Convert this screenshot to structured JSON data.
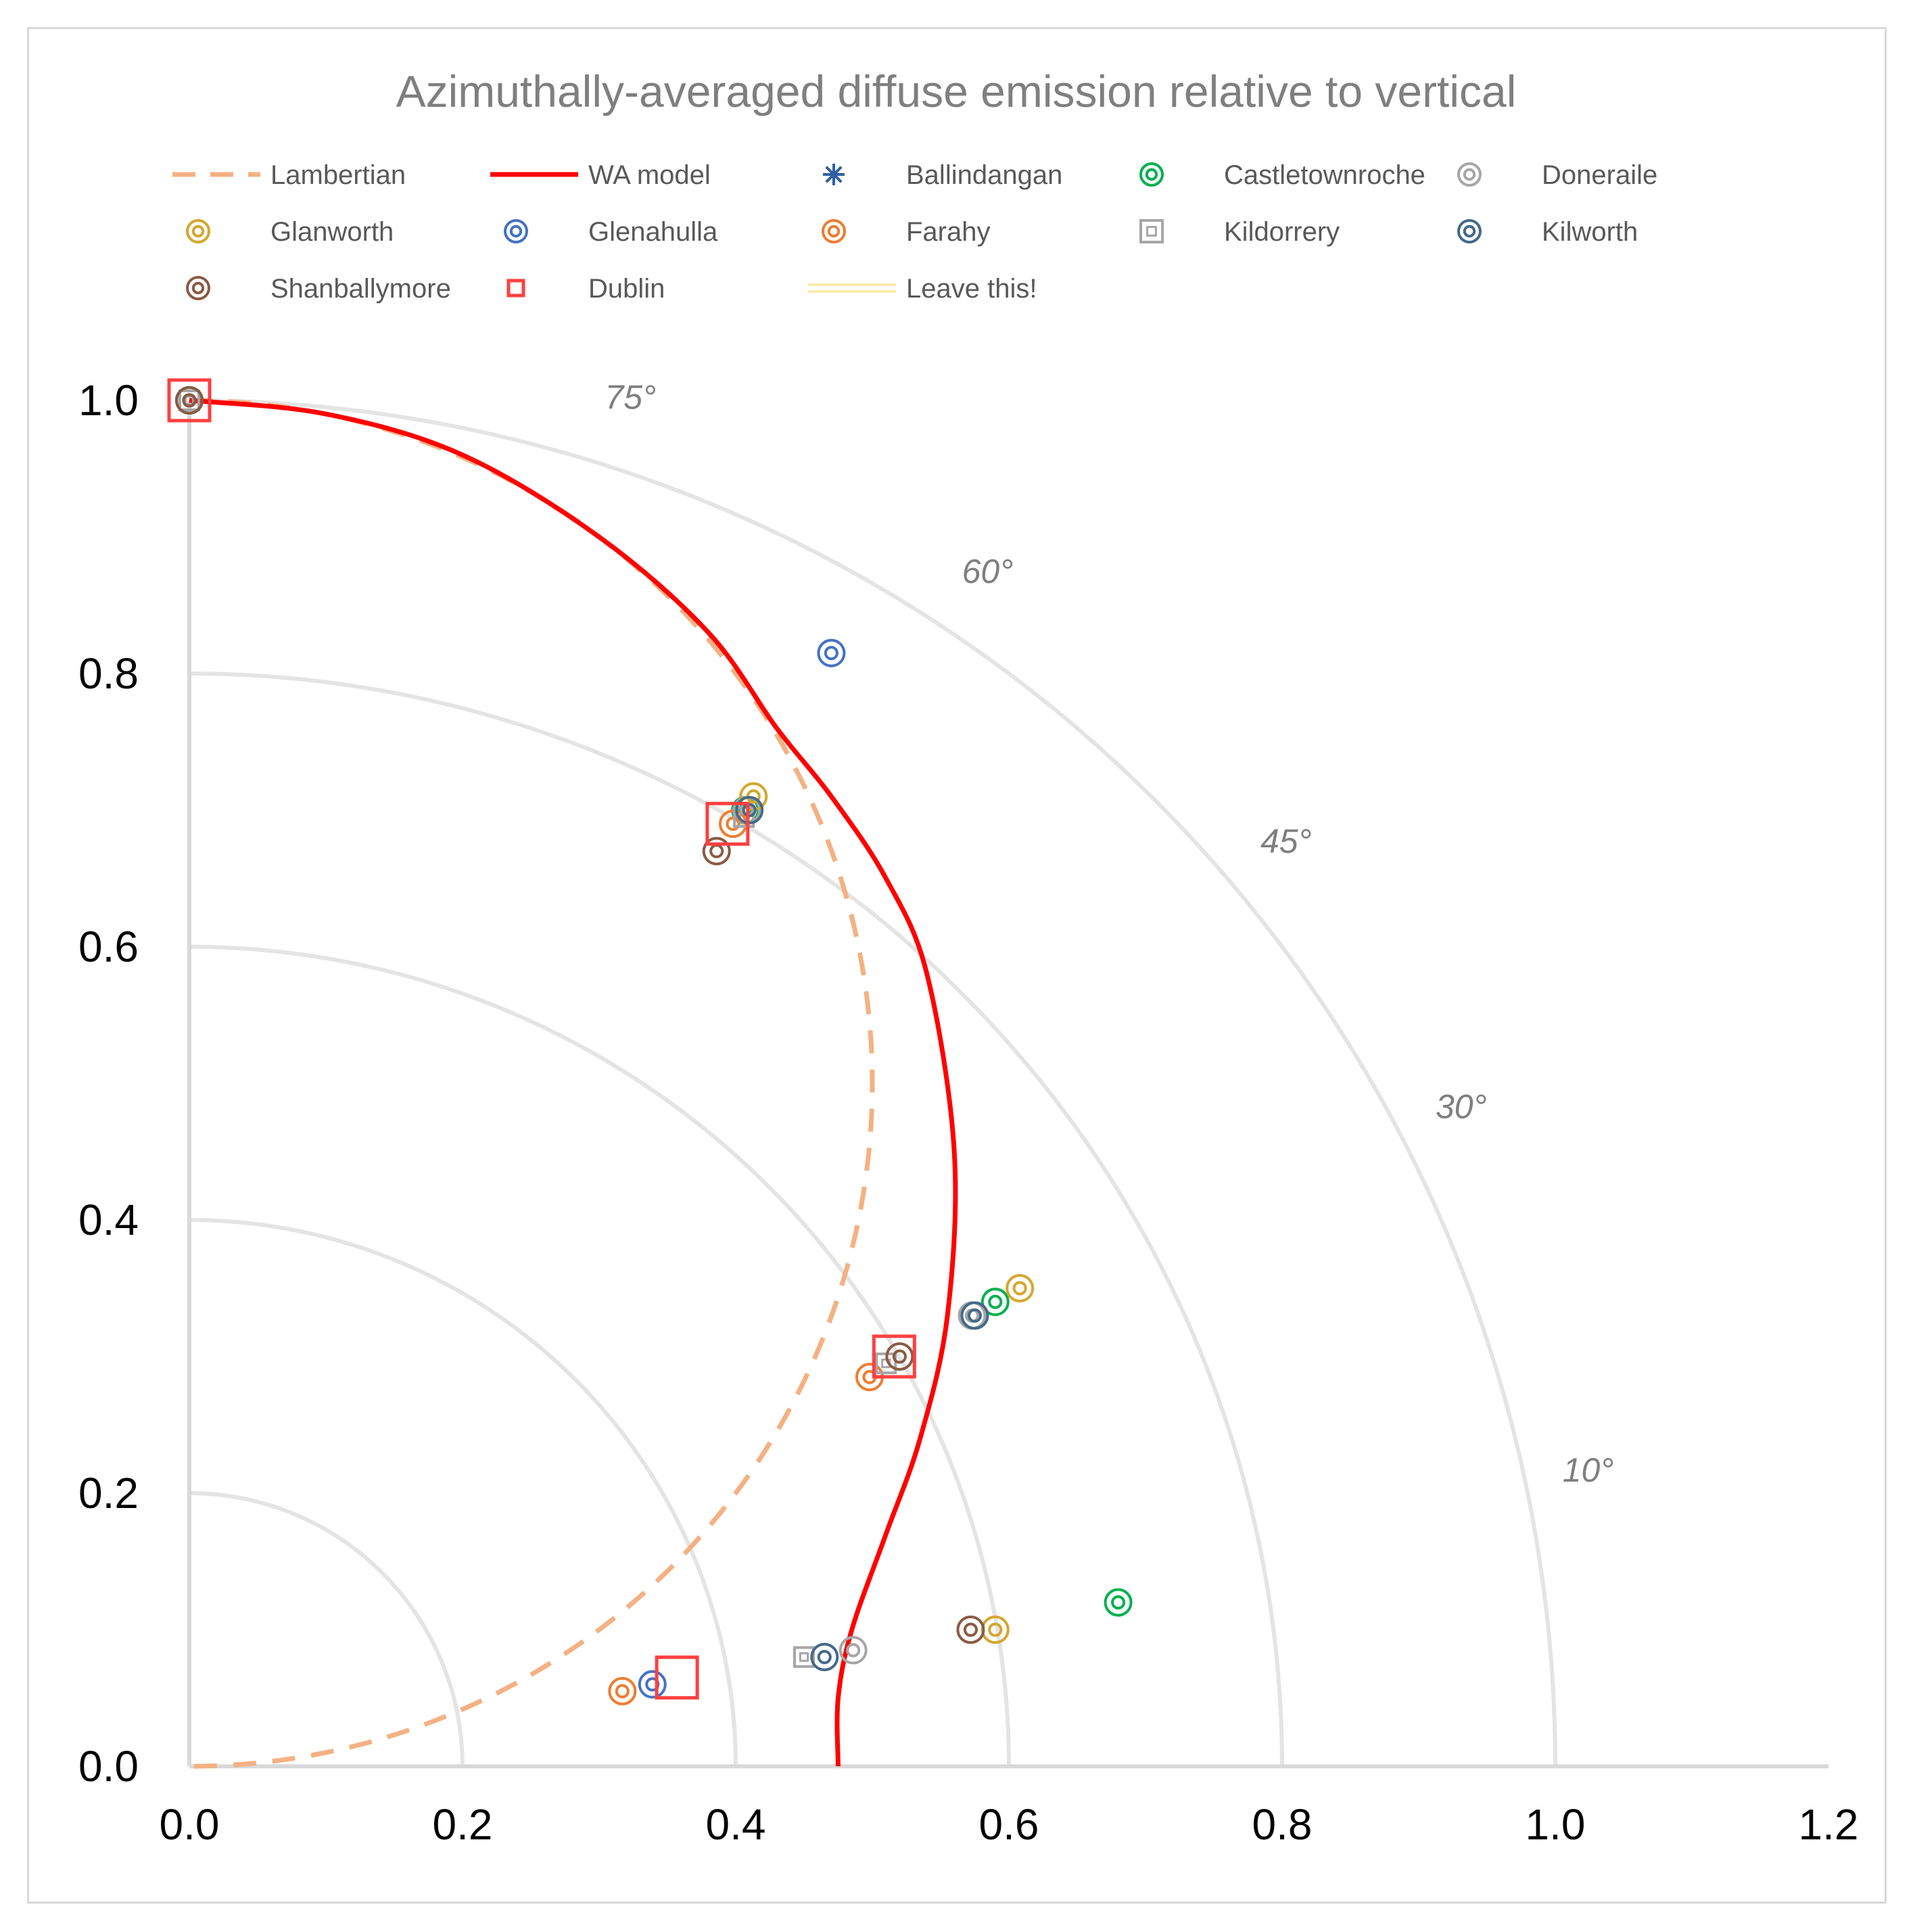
{
  "chart_data": {
    "type": "scatter",
    "title": "Azimuthally-averaged diffuse emission relative to vertical",
    "xlabel": "",
    "ylabel": "",
    "xlim": [
      0,
      1.2
    ],
    "ylim": [
      0,
      1.0
    ],
    "x_ticks": [
      "0.0",
      "0.2",
      "0.4",
      "0.6",
      "0.8",
      "1.0",
      "1.2"
    ],
    "y_ticks": [
      "0.0",
      "0.2",
      "0.4",
      "0.6",
      "0.8",
      "1.0"
    ],
    "grid_arcs_radius": [
      0.2,
      0.4,
      0.6,
      0.8,
      1.0
    ],
    "angle_labels": [
      {
        "text": "75°",
        "radius": 1.045,
        "angle_deg": 72
      },
      {
        "text": "60°",
        "radius": 1.045,
        "angle_deg": 56
      },
      {
        "text": "45°",
        "radius": 1.045,
        "angle_deg": 39.8
      },
      {
        "text": "30°",
        "radius": 1.045,
        "angle_deg": 27
      },
      {
        "text": "10°",
        "radius": 1.045,
        "angle_deg": 11.5
      }
    ],
    "legend_position": "top",
    "legend": [
      {
        "name": "Lambertian",
        "color": "#f4b183",
        "marker": "dashed-line"
      },
      {
        "name": "WA model",
        "color": "#ff0000",
        "marker": "line"
      },
      {
        "name": "Ballindangan",
        "color": "#2e5fa3",
        "marker": "asterisk"
      },
      {
        "name": "Castletownroche",
        "color": "#00b050",
        "marker": "double-circle"
      },
      {
        "name": "Doneraile",
        "color": "#a6a6a6",
        "marker": "double-circle"
      },
      {
        "name": "Glanworth",
        "color": "#d4a72c",
        "marker": "double-circle"
      },
      {
        "name": "Glenahulla",
        "color": "#4472c4",
        "marker": "double-circle"
      },
      {
        "name": "Farahy",
        "color": "#ed7d31",
        "marker": "double-circle"
      },
      {
        "name": "Kildorrery",
        "color": "#a6a6a6",
        "marker": "double-square"
      },
      {
        "name": "Kilworth",
        "color": "#44698a",
        "marker": "double-circle"
      },
      {
        "name": "Shanballymore",
        "color": "#8a5a44",
        "marker": "double-circle"
      },
      {
        "name": "Dublin",
        "color": "#ff4040",
        "marker": "square"
      },
      {
        "name": "Leave this!",
        "color": "#ffe699",
        "marker": "double-line"
      }
    ],
    "lambertian": {
      "description": "circle of diameter 1 through origin and (0,1)",
      "center": [
        0,
        0.5
      ],
      "radius": 0.5
    },
    "wa_model": {
      "x": [
        0.0,
        0.1,
        0.2,
        0.3,
        0.38,
        0.43,
        0.47,
        0.51,
        0.54,
        0.56,
        0.555,
        0.535,
        0.51,
        0.485,
        0.475,
        0.475
      ],
      "y": [
        1.0,
        0.99,
        0.96,
        0.9,
        0.83,
        0.76,
        0.71,
        0.65,
        0.58,
        0.45,
        0.33,
        0.24,
        0.17,
        0.1,
        0.05,
        0.0
      ]
    },
    "series": [
      {
        "name": "Castletownroche",
        "x": [
          0.0,
          0.407,
          0.59,
          0.68
        ],
        "y": [
          1.0,
          0.7,
          0.34,
          0.12
        ]
      },
      {
        "name": "Doneraile",
        "x": [
          0.0,
          0.408,
          0.573,
          0.486
        ],
        "y": [
          1.0,
          0.7,
          0.33,
          0.085
        ]
      },
      {
        "name": "Glanworth",
        "x": [
          0.0,
          0.413,
          0.608,
          0.59
        ],
        "y": [
          1.0,
          0.71,
          0.35,
          0.1
        ]
      },
      {
        "name": "Glenahulla",
        "x": [
          0.0,
          0.47,
          0.339
        ],
        "y": [
          1.0,
          0.815,
          0.06
        ]
      },
      {
        "name": "Farahy",
        "x": [
          0.0,
          0.398,
          0.498,
          0.317
        ],
        "y": [
          1.0,
          0.69,
          0.285,
          0.055
        ]
      },
      {
        "name": "Kildorrery",
        "x": [
          0.0,
          0.406,
          0.51,
          0.45
        ],
        "y": [
          1.0,
          0.695,
          0.295,
          0.08
        ]
      },
      {
        "name": "Kilworth",
        "x": [
          0.0,
          0.41,
          0.575,
          0.465
        ],
        "y": [
          1.0,
          0.7,
          0.33,
          0.08
        ]
      },
      {
        "name": "Shanballymore",
        "x": [
          0.0,
          0.386,
          0.52,
          0.572
        ],
        "y": [
          1.0,
          0.67,
          0.3,
          0.1
        ]
      },
      {
        "name": "Dublin",
        "x": [
          0.0,
          0.394,
          0.516,
          0.357
        ],
        "y": [
          1.0,
          0.69,
          0.3,
          0.065
        ]
      }
    ]
  }
}
